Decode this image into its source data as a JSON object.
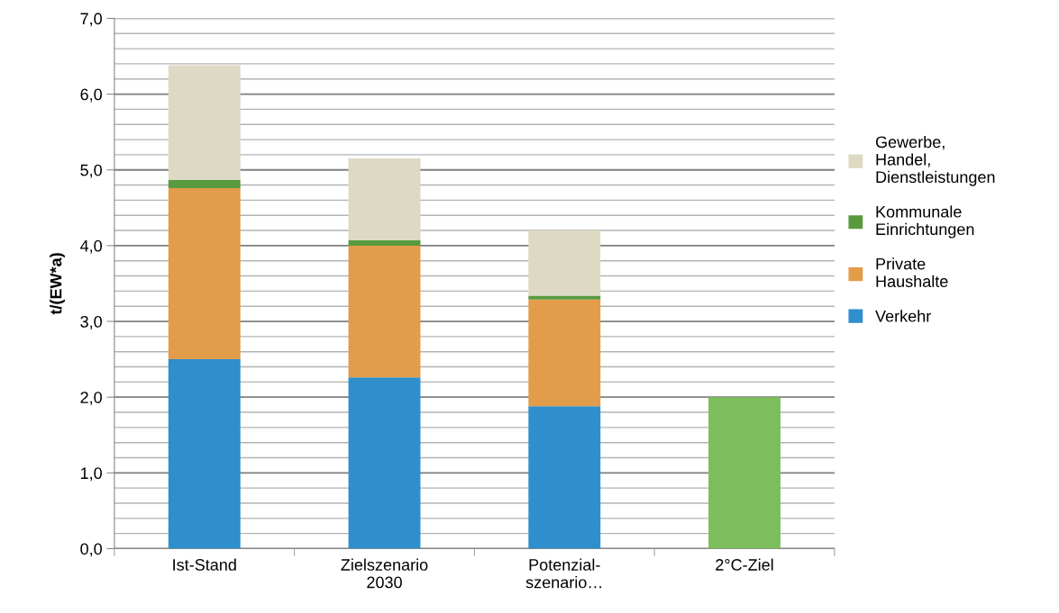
{
  "chart_data": {
    "type": "bar",
    "stacked": true,
    "ylabel": "t/(EW*a)",
    "categories": [
      "Ist-Stand",
      "Zielszenario\n2030",
      "Potenzial-\nszenario…",
      "2°C-Ziel"
    ],
    "series": [
      {
        "name": "Verkehr",
        "color": "#2e8fcc",
        "values": [
          2.5,
          2.26,
          1.88,
          null
        ]
      },
      {
        "name": "Private\nHaushalte",
        "color": "#e39c49",
        "values": [
          2.26,
          1.74,
          1.41,
          null
        ]
      },
      {
        "name": "Kommunale\nEinrichtungen",
        "color": "#5a9a3f",
        "values": [
          0.11,
          0.07,
          0.05,
          null
        ]
      },
      {
        "name": "Gewerbe,\nHandel,\nDienstleistungen",
        "color": "#ddd9c3",
        "values": [
          1.51,
          1.08,
          0.86,
          null
        ]
      },
      {
        "color": "#7dbe5c",
        "values": [
          null,
          null,
          null,
          2.0
        ]
      }
    ],
    "ylim": [
      0,
      7
    ],
    "yticks": [
      {
        "value": 0,
        "label": "0,0"
      },
      {
        "value": 0.2,
        "label": null
      },
      {
        "value": 0.4,
        "label": null
      },
      {
        "value": 0.6,
        "label": null
      },
      {
        "value": 0.8,
        "label": null
      },
      {
        "value": 1,
        "label": "1,0"
      },
      {
        "value": 1.2,
        "label": null
      },
      {
        "value": 1.4,
        "label": null
      },
      {
        "value": 1.6,
        "label": null
      },
      {
        "value": 1.8,
        "label": null
      },
      {
        "value": 2,
        "label": "2,0"
      },
      {
        "value": 2.2,
        "label": null
      },
      {
        "value": 2.4,
        "label": null
      },
      {
        "value": 2.6,
        "label": null
      },
      {
        "value": 2.8,
        "label": null
      },
      {
        "value": 3,
        "label": "3,0"
      },
      {
        "value": 3.2,
        "label": null
      },
      {
        "value": 3.4,
        "label": null
      },
      {
        "value": 3.6,
        "label": null
      },
      {
        "value": 3.8,
        "label": null
      },
      {
        "value": 4,
        "label": "4,0"
      },
      {
        "value": 4.2,
        "label": null
      },
      {
        "value": 4.4,
        "label": null
      },
      {
        "value": 4.6,
        "label": null
      },
      {
        "value": 4.8,
        "label": null
      },
      {
        "value": 5,
        "label": "5,0"
      },
      {
        "value": 5.2,
        "label": null
      },
      {
        "value": 5.4,
        "label": null
      },
      {
        "value": 5.6,
        "label": null
      },
      {
        "value": 5.8,
        "label": null
      },
      {
        "value": 6,
        "label": "6,0"
      },
      {
        "value": 6.2,
        "label": null
      },
      {
        "value": 6.4,
        "label": null
      },
      {
        "value": 6.6,
        "label": null
      },
      {
        "value": 6.8,
        "label": null
      },
      {
        "value": 7,
        "label": "7,0"
      }
    ],
    "grid": "y",
    "legend": "right"
  }
}
